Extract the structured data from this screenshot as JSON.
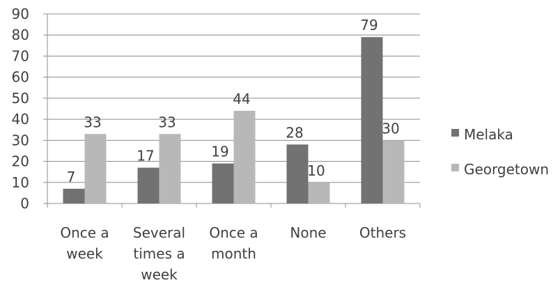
{
  "chart_data": {
    "type": "bar",
    "categories": [
      [
        "Once a",
        "week"
      ],
      [
        "Several",
        "times a",
        "week"
      ],
      [
        "Once a",
        "month"
      ],
      [
        "None"
      ],
      [
        "Others"
      ]
    ],
    "series": [
      {
        "name": "Melaka",
        "values": [
          7,
          17,
          19,
          28,
          79
        ],
        "color": "#727272"
      },
      {
        "name": "Georgetown",
        "values": [
          33,
          33,
          44,
          10,
          30
        ],
        "color": "#b8b8b8"
      }
    ],
    "ylim": [
      0,
      90
    ],
    "yticks": [
      0,
      10,
      20,
      30,
      40,
      50,
      60,
      70,
      80,
      90
    ],
    "grid": true,
    "legend_position": "right",
    "data_labels": true
  }
}
